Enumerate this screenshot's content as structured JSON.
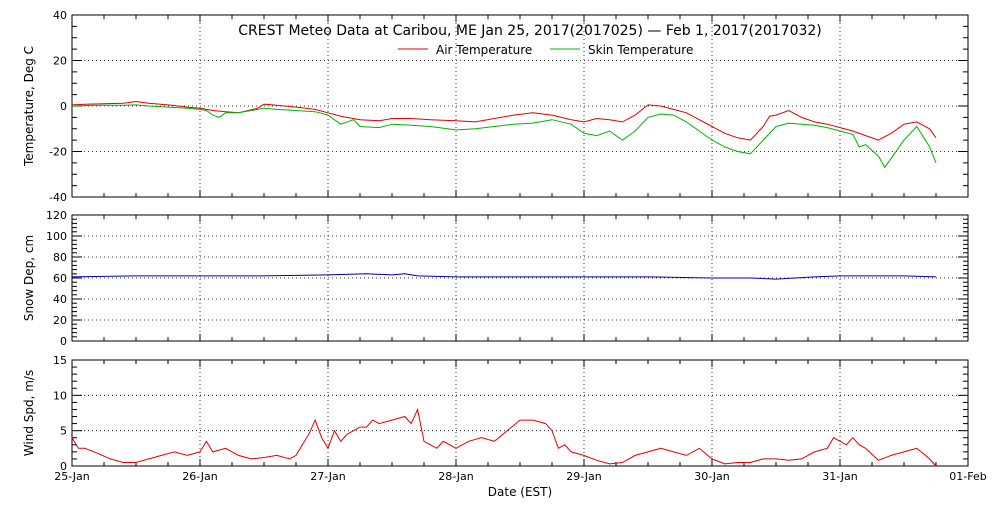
{
  "title": "CREST Meteo Data at Caribou, ME   Jan 25, 2017(2017025) — Feb  1, 2017(2017032)",
  "xlabel": "Date (EST)",
  "colors": {
    "air": "#e00000",
    "skin": "#00b400",
    "snow": "#0000b0",
    "wind": "#e00000",
    "grid": "#000000"
  },
  "chart_data": [
    {
      "type": "line",
      "ylabel": "Temperature, Deg C",
      "ylim": [
        -40,
        40
      ],
      "yticks": [
        "-40",
        "-20",
        "0",
        "20",
        "40"
      ],
      "xlim": [
        0,
        7
      ],
      "x_ticks": [
        "25-Jan",
        "26-Jan",
        "27-Jan",
        "28-Jan",
        "29-Jan",
        "30-Jan",
        "31-Jan",
        "01-Feb"
      ],
      "grid": true,
      "legend": "top-center",
      "series": [
        {
          "name": "Air Temperature",
          "color": "#e00000",
          "x": [
            0,
            0.1,
            0.25,
            0.4,
            0.5,
            0.6,
            0.75,
            0.9,
            1.0,
            1.1,
            1.2,
            1.3,
            1.45,
            1.5,
            1.6,
            1.75,
            1.9,
            2.0,
            2.1,
            2.25,
            2.4,
            2.5,
            2.65,
            2.8,
            3.0,
            3.15,
            3.3,
            3.45,
            3.6,
            3.75,
            3.9,
            4.0,
            4.1,
            4.2,
            4.3,
            4.4,
            4.5,
            4.6,
            4.7,
            4.8,
            4.9,
            5.0,
            5.1,
            5.2,
            5.3,
            5.4,
            5.45,
            5.5,
            5.6,
            5.7,
            5.8,
            5.9,
            6.0,
            6.1,
            6.2,
            6.3,
            6.4,
            6.5,
            6.6,
            6.7,
            6.75
          ],
          "values": [
            0.5,
            0.8,
            1.0,
            1.2,
            2.0,
            1.2,
            0.5,
            -0.5,
            -1.0,
            -2.0,
            -2.5,
            -3.0,
            -1.0,
            0.8,
            0.3,
            -0.5,
            -1.5,
            -3.0,
            -4.5,
            -6.0,
            -6.5,
            -5.5,
            -5.5,
            -6.0,
            -6.5,
            -7.0,
            -5.5,
            -4.0,
            -3.0,
            -4.0,
            -6.0,
            -7.0,
            -5.5,
            -6.0,
            -7.0,
            -4.0,
            0.5,
            0.0,
            -1.5,
            -3.0,
            -6.0,
            -9.0,
            -12.0,
            -14.0,
            -15.0,
            -9.0,
            -4.5,
            -4.0,
            -2.0,
            -5.0,
            -7.0,
            -8.0,
            -9.5,
            -11.0,
            -13.0,
            -15.0,
            -12.0,
            -8.0,
            -7.0,
            -10.0,
            -14.0
          ]
        },
        {
          "name": "Skin Temperature",
          "color": "#00b400",
          "x": [
            0,
            0.1,
            0.25,
            0.4,
            0.5,
            0.6,
            0.75,
            0.9,
            1.0,
            1.05,
            1.1,
            1.15,
            1.2,
            1.3,
            1.45,
            1.5,
            1.6,
            1.75,
            1.9,
            2.0,
            2.05,
            2.1,
            2.2,
            2.25,
            2.4,
            2.5,
            2.65,
            2.8,
            3.0,
            3.15,
            3.3,
            3.45,
            3.6,
            3.75,
            3.9,
            4.0,
            4.1,
            4.2,
            4.3,
            4.4,
            4.5,
            4.6,
            4.7,
            4.8,
            4.9,
            5.0,
            5.1,
            5.2,
            5.3,
            5.4,
            5.5,
            5.6,
            5.7,
            5.8,
            5.9,
            6.0,
            6.1,
            6.15,
            6.2,
            6.3,
            6.35,
            6.4,
            6.5,
            6.6,
            6.7,
            6.75
          ],
          "values": [
            0.0,
            0.2,
            0.3,
            0.3,
            0.5,
            0.0,
            -0.5,
            -1.0,
            -1.5,
            -2.0,
            -4.0,
            -5.0,
            -3.0,
            -3.0,
            -1.5,
            -1.0,
            -1.5,
            -2.0,
            -2.5,
            -4.0,
            -6.0,
            -8.0,
            -6.0,
            -9.0,
            -9.5,
            -8.0,
            -8.5,
            -9.0,
            -10.5,
            -10.0,
            -9.0,
            -8.0,
            -7.5,
            -6.0,
            -8.0,
            -12.0,
            -13.0,
            -11.0,
            -15.0,
            -11.0,
            -5.0,
            -3.5,
            -4.0,
            -7.0,
            -11.0,
            -15.0,
            -18.0,
            -20.0,
            -21.0,
            -15.0,
            -9.0,
            -7.5,
            -8.0,
            -8.5,
            -9.5,
            -11.0,
            -12.5,
            -18.0,
            -17.0,
            -22.0,
            -27.0,
            -23.0,
            -15.0,
            -9.0,
            -18.0,
            -25.0
          ]
        }
      ]
    },
    {
      "type": "line",
      "ylabel": "Snow Dep, cm",
      "ylim": [
        0,
        120
      ],
      "yticks": [
        "0",
        "20",
        "40",
        "60",
        "80",
        "100",
        "120"
      ],
      "xlim": [
        0,
        7
      ],
      "x_ticks": [
        "25-Jan",
        "26-Jan",
        "27-Jan",
        "28-Jan",
        "29-Jan",
        "30-Jan",
        "31-Jan",
        "01-Feb"
      ],
      "grid": true,
      "series": [
        {
          "color": "#0000b0",
          "x": [
            0,
            0.5,
            1.0,
            1.5,
            2.0,
            2.3,
            2.5,
            2.6,
            2.7,
            3.0,
            3.5,
            4.0,
            4.5,
            5.0,
            5.3,
            5.5,
            5.8,
            6.0,
            6.3,
            6.5,
            6.75
          ],
          "values": [
            61,
            62,
            62,
            62,
            63,
            64,
            63,
            64,
            62,
            61,
            61,
            61,
            61,
            60,
            60,
            59,
            61,
            62,
            62,
            62,
            61
          ]
        }
      ]
    },
    {
      "type": "line",
      "ylabel": "Wind Spd, m/s",
      "ylim": [
        0,
        15
      ],
      "yticks": [
        "0",
        "5",
        "10",
        "15"
      ],
      "xlim": [
        0,
        7
      ],
      "x_ticks": [
        "25-Jan",
        "26-Jan",
        "27-Jan",
        "28-Jan",
        "29-Jan",
        "30-Jan",
        "31-Jan",
        "01-Feb"
      ],
      "xlabel": "Date (EST)",
      "grid": true,
      "series": [
        {
          "color": "#e00000",
          "x": [
            0,
            0.05,
            0.1,
            0.2,
            0.3,
            0.4,
            0.5,
            0.6,
            0.7,
            0.8,
            0.9,
            1.0,
            1.05,
            1.1,
            1.2,
            1.3,
            1.4,
            1.5,
            1.6,
            1.7,
            1.75,
            1.8,
            1.85,
            1.9,
            1.95,
            2.0,
            2.05,
            2.1,
            2.15,
            2.2,
            2.25,
            2.3,
            2.35,
            2.4,
            2.5,
            2.6,
            2.65,
            2.7,
            2.75,
            2.8,
            2.85,
            2.9,
            3.0,
            3.1,
            3.2,
            3.3,
            3.4,
            3.5,
            3.6,
            3.7,
            3.75,
            3.8,
            3.85,
            3.9,
            4.0,
            4.1,
            4.2,
            4.3,
            4.4,
            4.5,
            4.6,
            4.7,
            4.8,
            4.9,
            5.0,
            5.1,
            5.2,
            5.3,
            5.4,
            5.5,
            5.6,
            5.7,
            5.8,
            5.9,
            5.95,
            6.0,
            6.05,
            6.1,
            6.15,
            6.2,
            6.3,
            6.4,
            6.5,
            6.6,
            6.7,
            6.75
          ],
          "values": [
            4.0,
            2.5,
            2.5,
            1.8,
            1.0,
            0.5,
            0.5,
            1.0,
            1.5,
            2.0,
            1.5,
            2.0,
            3.5,
            2.0,
            2.5,
            1.5,
            1.0,
            1.2,
            1.5,
            1.0,
            1.5,
            3.0,
            4.5,
            6.5,
            4.0,
            2.5,
            5.0,
            3.5,
            4.5,
            5.0,
            5.5,
            5.5,
            6.5,
            6.0,
            6.5,
            7.0,
            6.0,
            8.0,
            3.5,
            3.0,
            2.5,
            3.5,
            2.5,
            3.5,
            4.0,
            3.5,
            5.0,
            6.5,
            6.5,
            6.0,
            5.0,
            2.5,
            3.0,
            2.0,
            1.5,
            0.8,
            0.3,
            0.5,
            1.5,
            2.0,
            2.5,
            2.0,
            1.5,
            2.5,
            1.0,
            0.3,
            0.5,
            0.5,
            1.0,
            1.0,
            0.8,
            1.0,
            2.0,
            2.5,
            4.0,
            3.5,
            3.0,
            4.0,
            3.0,
            2.5,
            0.8,
            1.5,
            2.0,
            2.5,
            1.0,
            0.0
          ]
        }
      ]
    }
  ]
}
